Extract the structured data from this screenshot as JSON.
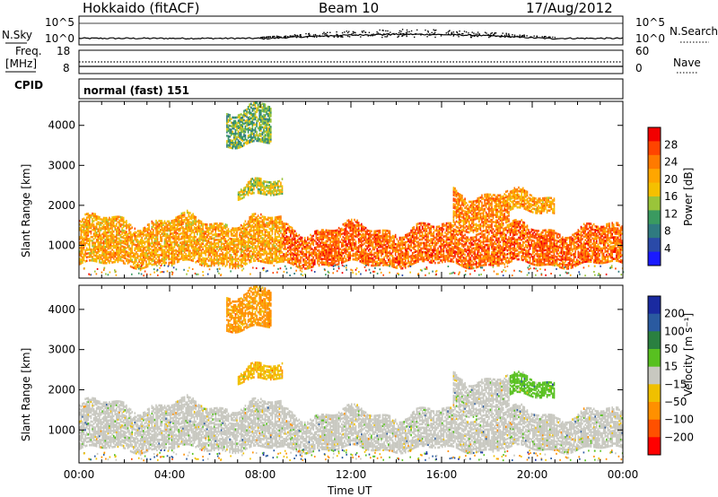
{
  "header": {
    "station": "Hokkaido (fitACF)",
    "beam": "Beam 10",
    "date": "17/Aug/2012"
  },
  "noise_panel": {
    "left_label": "N.Sky",
    "right_label": "N.Search",
    "y_top": "10^5",
    "y_bottom": "10^0",
    "right_top": "10^5",
    "right_bottom": "10^0"
  },
  "freq_panel": {
    "left_label_1": "Freq.",
    "left_label_2": "[MHz]",
    "left_top": "18",
    "left_bottom": "8",
    "right_label": "Nave",
    "right_top": "60",
    "right_bottom": "0"
  },
  "cpid_panel": {
    "label": "CPID",
    "mode": "normal (fast) 151"
  },
  "power_panel": {
    "ylabel": "Slant Range [km]",
    "cbar_label": "Power [dB]",
    "cbar_ticks": [
      "28",
      "24",
      "20",
      "16",
      "12",
      "8",
      "4"
    ],
    "cbar_colors": [
      "#f20000",
      "#ff4400",
      "#ff7a00",
      "#ffa600",
      "#f5c000",
      "#9ac43a",
      "#3a9a60",
      "#2f7a80",
      "#2a4aa8",
      "#1a1aff"
    ]
  },
  "velocity_panel": {
    "ylabel": "Slant Range [km]",
    "cbar_label": "Velocity [m s⁻¹]",
    "cbar_ticks": [
      "200",
      "100",
      "50",
      "15",
      "−15",
      "−50",
      "−100",
      "−200"
    ],
    "cbar_colors": [
      "#1a2aa0",
      "#2a5aa0",
      "#2a8040",
      "#58c020",
      "#c8c8c0",
      "#f0c000",
      "#ff9000",
      "#ff5000",
      "#ff0000"
    ]
  },
  "x_axis": {
    "label": "Time UT",
    "ticks": [
      "00:00",
      "04:00",
      "08:00",
      "12:00",
      "16:00",
      "20:00",
      "00:00"
    ]
  },
  "chart_data": {
    "type": "heatmap",
    "title": "Hokkaido (fitACF)",
    "xlabel": "Time UT",
    "x_range_hours": [
      0,
      24
    ],
    "y_ticks_km": [
      1000,
      2000,
      3000,
      4000
    ],
    "ylabel": "Slant Range [km]",
    "power_colorbar_dB": [
      4,
      8,
      12,
      16,
      20,
      24,
      28
    ],
    "velocity_colorbar_m_per_s": [
      -200,
      -100,
      -50,
      -15,
      15,
      50,
      100,
      200
    ],
    "scatter_regions": [
      {
        "t_start": 0,
        "t_end": 9,
        "range_min_km": 500,
        "range_max_km": 1600,
        "power_dB": 24,
        "velocity": 0
      },
      {
        "t_start": 9,
        "t_end": 24,
        "range_min_km": 500,
        "range_max_km": 1400,
        "power_dB": 28,
        "velocity": 0
      },
      {
        "t_start": 16.5,
        "t_end": 19,
        "range_min_km": 1400,
        "range_max_km": 2300,
        "power_dB": 26,
        "velocity": 0
      },
      {
        "t_start": 19,
        "t_end": 21,
        "range_min_km": 1800,
        "range_max_km": 2200,
        "power_dB": 24,
        "velocity": 30
      },
      {
        "t_start": 7,
        "t_end": 9,
        "range_min_km": 2200,
        "range_max_km": 2500,
        "power_dB": 20,
        "velocity": -40
      },
      {
        "t_start": 6.5,
        "t_end": 8.5,
        "range_min_km": 3500,
        "range_max_km": 4400,
        "power_dB": 16,
        "velocity": -60
      }
    ]
  }
}
